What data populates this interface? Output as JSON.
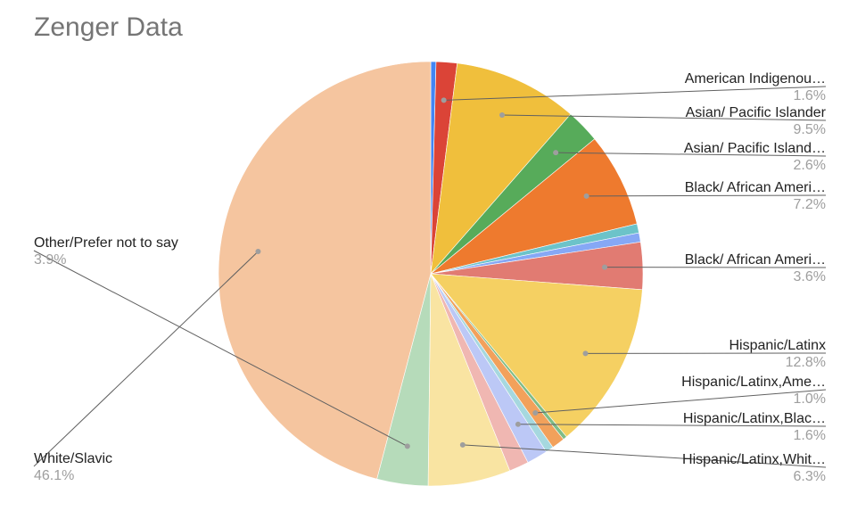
{
  "chart_data": {
    "type": "pie",
    "title": "Zenger Data",
    "start_angle_deg": 0,
    "direction": "clockwise",
    "slices": [
      {
        "label": "American Indigenous",
        "display_label": "American Indigenou…",
        "value": 0.4,
        "pct_label": "",
        "color": "#4285f4"
      },
      {
        "label": "American Indigenous",
        "display_label": "American Indigenou…",
        "value": 1.6,
        "pct_label": "1.6%",
        "color": "#db4437"
      },
      {
        "label": "Asian/ Pacific Islander",
        "display_label": "Asian/ Pacific Islander",
        "value": 9.5,
        "pct_label": "9.5%",
        "color": "#f0bf3c"
      },
      {
        "label": "Asian/ Pacific Islander",
        "display_label": "Asian/ Pacific Island…",
        "value": 2.6,
        "pct_label": "2.6%",
        "color": "#57ab5a"
      },
      {
        "label": "Black/ African American",
        "display_label": "Black/ African Ameri…",
        "value": 7.2,
        "pct_label": "7.2%",
        "color": "#ee7a2e"
      },
      {
        "label": "",
        "display_label": "",
        "value": 0.7,
        "pct_label": "",
        "color": "#6cc3c9"
      },
      {
        "label": "",
        "display_label": "",
        "value": 0.7,
        "pct_label": "",
        "color": "#86a8f5"
      },
      {
        "label": "Black/ African American",
        "display_label": "Black/ African Ameri…",
        "value": 3.6,
        "pct_label": "3.6%",
        "color": "#e17b72"
      },
      {
        "label": "Hispanic/Latinx",
        "display_label": "Hispanic/Latinx",
        "value": 12.8,
        "pct_label": "12.8%",
        "color": "#f5d062"
      },
      {
        "label": "",
        "display_label": "",
        "value": 0.3,
        "pct_label": "",
        "color": "#7fbc86"
      },
      {
        "label": "Hispanic/Latinx, American",
        "display_label": "Hispanic/Latinx,Ame…",
        "value": 1.0,
        "pct_label": "1.0%",
        "color": "#f2a15b"
      },
      {
        "label": "",
        "display_label": "",
        "value": 0.6,
        "pct_label": "",
        "color": "#a6d8df"
      },
      {
        "label": "Hispanic/Latinx, Black",
        "display_label": "Hispanic/Latinx,Blac…",
        "value": 1.6,
        "pct_label": "1.6%",
        "color": "#bcc8f6"
      },
      {
        "label": "",
        "display_label": "",
        "value": 1.5,
        "pct_label": "",
        "color": "#f0b7b2"
      },
      {
        "label": "Hispanic/Latinx, White",
        "display_label": "Hispanic/Latinx,Whit…",
        "value": 6.3,
        "pct_label": "6.3%",
        "color": "#f9e4a2"
      },
      {
        "label": "Other/Prefer not to say",
        "display_label": "Other/Prefer not to say",
        "value": 3.9,
        "pct_label": "3.9%",
        "color": "#b6dbba"
      },
      {
        "label": "White/Slavic",
        "display_label": "White/Slavic",
        "value": 46.1,
        "pct_label": "46.1%",
        "color": "#f5c59f"
      }
    ],
    "callouts": [
      {
        "slice": 1,
        "side": "right"
      },
      {
        "slice": 2,
        "side": "right"
      },
      {
        "slice": 3,
        "side": "right"
      },
      {
        "slice": 4,
        "side": "right"
      },
      {
        "slice": 7,
        "side": "right"
      },
      {
        "slice": 8,
        "side": "right"
      },
      {
        "slice": 10,
        "side": "right"
      },
      {
        "slice": 12,
        "side": "right"
      },
      {
        "slice": 14,
        "side": "right"
      },
      {
        "slice": 15,
        "side": "left"
      },
      {
        "slice": 16,
        "side": "left"
      }
    ]
  }
}
